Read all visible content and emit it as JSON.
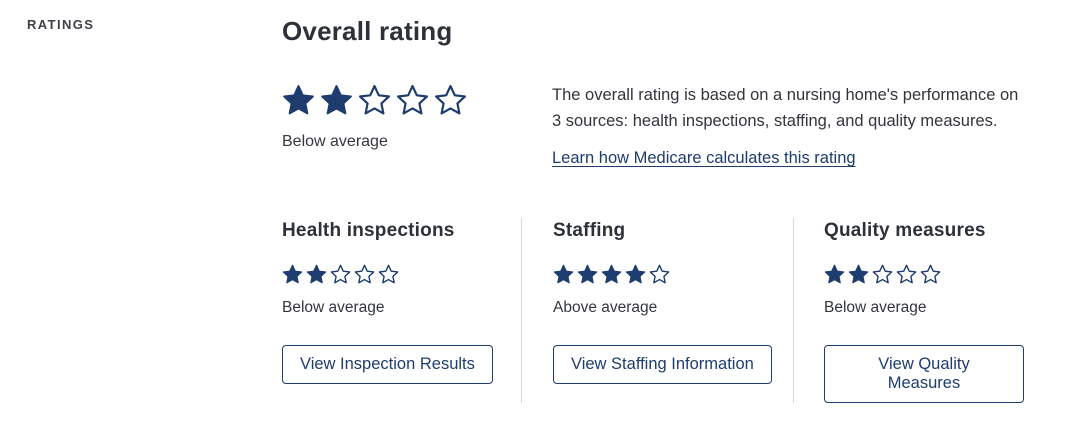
{
  "page": {
    "section_label": "RATINGS"
  },
  "max_stars": 5,
  "colors": {
    "star_navy": "#1e3c6e",
    "link_navy": "#1e3c6e",
    "button_border": "#1e3c6e",
    "heading_text": "#2d3138",
    "body_text": "#33363b",
    "divider": "#d9d9d9",
    "background": "#ffffff"
  },
  "overall": {
    "title": "Overall rating",
    "rating": 2,
    "label": "Below average",
    "description": "The overall rating is based on a nursing home's performance on 3 sources: health inspections, staffing, and quality measures.",
    "link_label": "Learn how Medicare calculates this rating"
  },
  "subratings": [
    {
      "title": "Health inspections",
      "rating": 2,
      "label": "Below average",
      "button_label": "View Inspection Results"
    },
    {
      "title": "Staffing",
      "rating": 4,
      "label": "Above average",
      "button_label": "View Staffing Information"
    },
    {
      "title": "Quality measures",
      "rating": 2,
      "label": "Below average",
      "button_label": "View Quality Measures"
    }
  ]
}
